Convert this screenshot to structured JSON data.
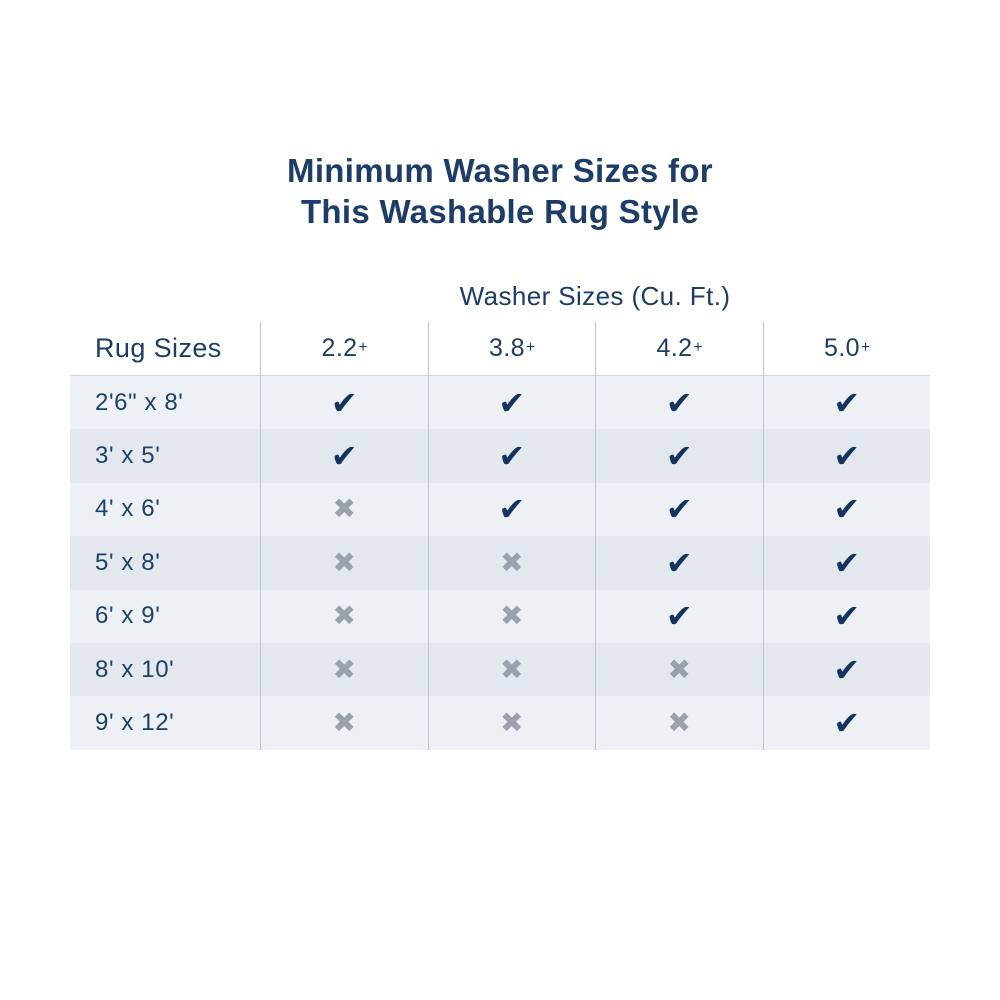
{
  "title": {
    "line1": "Minimum Washer Sizes for",
    "line2": "This Washable Rug Style"
  },
  "table": {
    "group_header": "Washer Sizes (Cu. Ft.)",
    "corner_label": "Rug Sizes",
    "columns": [
      {
        "value": "2.2",
        "suffix": "+"
      },
      {
        "value": "3.8",
        "suffix": "+"
      },
      {
        "value": "4.2",
        "suffix": "+"
      },
      {
        "value": "5.0",
        "suffix": "+"
      }
    ],
    "rows": [
      {
        "label": "2'6\" x 8'",
        "cells": [
          "check",
          "check",
          "check",
          "check"
        ]
      },
      {
        "label": "3' x 5'",
        "cells": [
          "check",
          "check",
          "check",
          "check"
        ]
      },
      {
        "label": "4' x 6'",
        "cells": [
          "x",
          "check",
          "check",
          "check"
        ]
      },
      {
        "label": "5' x 8'",
        "cells": [
          "x",
          "x",
          "check",
          "check"
        ]
      },
      {
        "label": "6' x 9'",
        "cells": [
          "x",
          "x",
          "check",
          "check"
        ]
      },
      {
        "label": "8' x 10'",
        "cells": [
          "x",
          "x",
          "x",
          "check"
        ]
      },
      {
        "label": "9' x 12'",
        "cells": [
          "x",
          "x",
          "x",
          "check"
        ]
      }
    ],
    "icons": {
      "check": "✔",
      "x": "✖"
    },
    "colors": {
      "title_navy": "#1d3c66",
      "check_navy": "#14335e",
      "x_gray": "#9aa1ad",
      "row_light": "#edf1f5",
      "row_dark": "#e3e8ee",
      "border": "#bcc7d3"
    }
  },
  "chart_data": {
    "type": "table",
    "title": "Minimum Washer Sizes for This Washable Rug Style",
    "group_header": "Washer Sizes (Cu. Ft.)",
    "columns": [
      "Rug Sizes",
      "2.2+",
      "3.8+",
      "4.2+",
      "5.0+"
    ],
    "rows": [
      [
        "2'6\" x 8'",
        true,
        true,
        true,
        true
      ],
      [
        "3' x 5'",
        true,
        true,
        true,
        true
      ],
      [
        "4' x 6'",
        false,
        true,
        true,
        true
      ],
      [
        "5' x 8'",
        false,
        false,
        true,
        true
      ],
      [
        "6' x 9'",
        false,
        false,
        true,
        true
      ],
      [
        "8' x 10'",
        false,
        false,
        false,
        true
      ],
      [
        "9' x 12'",
        false,
        false,
        false,
        true
      ]
    ]
  }
}
